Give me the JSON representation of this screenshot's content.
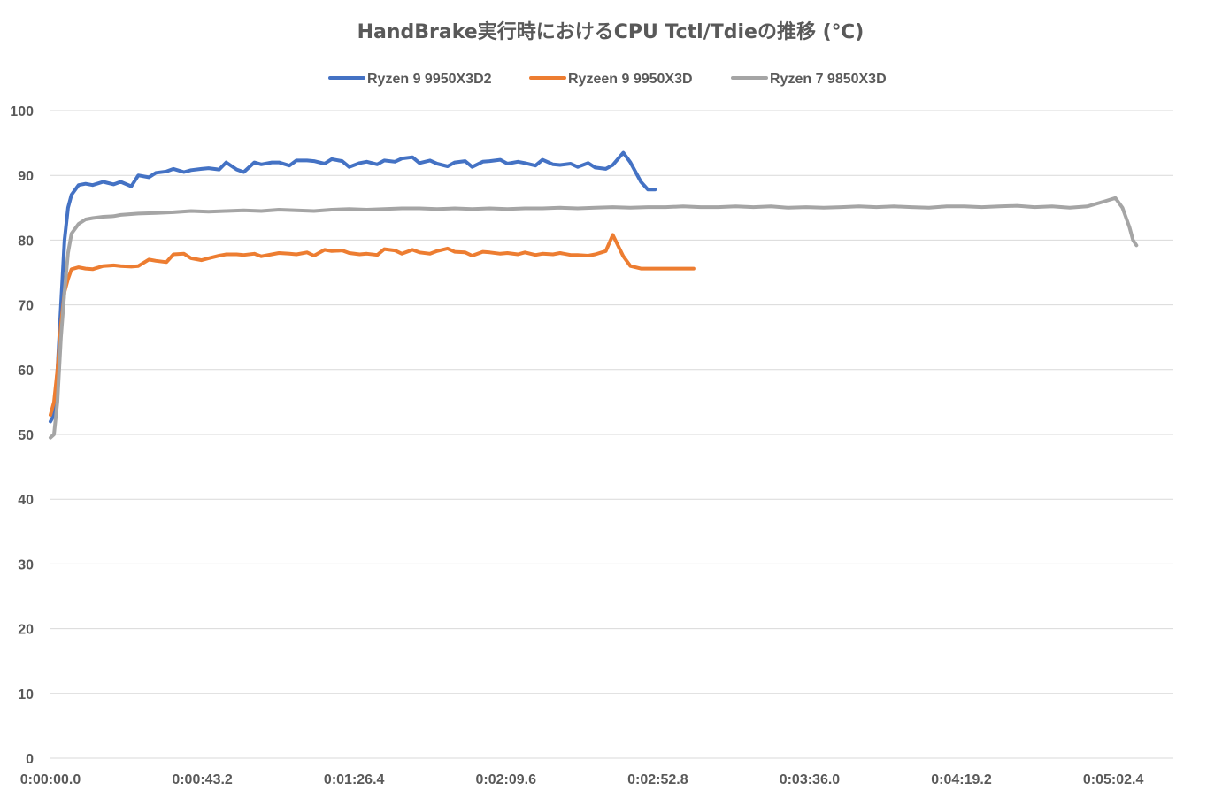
{
  "chart_data": {
    "type": "line",
    "title": "HandBrake実行時におけるCPU Tctl/Tdieの推移 (℃)",
    "xlabel": "",
    "ylabel": "",
    "ylim": [
      0,
      100
    ],
    "yticks": [
      "0",
      "10",
      "20",
      "30",
      "40",
      "50",
      "60",
      "70",
      "80",
      "90",
      "100"
    ],
    "xticks": [
      {
        "label": "0:00:00.0",
        "t": 0
      },
      {
        "label": "0:00:43.2",
        "t": 43.2
      },
      {
        "label": "0:01:26.4",
        "t": 86.4
      },
      {
        "label": "0:02:09.6",
        "t": 129.6
      },
      {
        "label": "0:02:52.8",
        "t": 172.8
      },
      {
        "label": "0:03:36.0",
        "t": 216.0
      },
      {
        "label": "0:04:19.2",
        "t": 259.2
      },
      {
        "label": "0:05:02.4",
        "t": 302.4
      }
    ],
    "xlim_seconds": [
      0,
      320
    ],
    "grid": true,
    "legend_position": "top",
    "series": [
      {
        "name": "Ryzen 9 9950X3D2",
        "color": "#4472c4",
        "t": [
          0,
          1,
          2,
          3,
          4,
          5,
          6,
          8,
          10,
          12,
          15,
          18,
          20,
          23,
          25,
          28,
          30,
          33,
          35,
          38,
          40,
          43,
          45,
          48,
          50,
          53,
          55,
          58,
          60,
          63,
          65,
          68,
          70,
          73,
          75,
          78,
          80,
          83,
          85,
          88,
          90,
          93,
          95,
          98,
          100,
          103,
          105,
          108,
          110,
          113,
          115,
          118,
          120,
          123,
          125,
          128,
          130,
          133,
          135,
          138,
          140,
          143,
          145,
          148,
          150,
          153,
          155,
          158,
          160,
          163,
          165,
          168,
          170,
          171,
          172
        ],
        "y": [
          52,
          53,
          60,
          70,
          80,
          85,
          87,
          88.5,
          88.7,
          88.5,
          89,
          88.6,
          89,
          88.3,
          90,
          89.7,
          90.4,
          90.6,
          91,
          90.5,
          90.8,
          91,
          91.1,
          90.9,
          92,
          90.9,
          90.5,
          92,
          91.7,
          92,
          92,
          91.5,
          92.3,
          92.3,
          92.2,
          91.8,
          92.5,
          92.2,
          91.3,
          91.9,
          92.1,
          91.7,
          92.3,
          92.1,
          92.6,
          92.8,
          91.9,
          92.3,
          91.8,
          91.4,
          92,
          92.2,
          91.3,
          92.1,
          92.2,
          92.4,
          91.8,
          92.1,
          91.9,
          91.5,
          92.4,
          91.7,
          91.6,
          91.8,
          91.3,
          91.9,
          91.2,
          91,
          91.6,
          93.5,
          92,
          89,
          87.8,
          87.8,
          87.8
        ]
      },
      {
        "name": "Ryzeen 9 9950X3D",
        "color": "#ed7d31",
        "t": [
          0,
          1,
          2,
          3,
          4,
          5,
          6,
          8,
          10,
          12,
          15,
          18,
          20,
          23,
          25,
          28,
          30,
          33,
          35,
          38,
          40,
          43,
          45,
          48,
          50,
          53,
          55,
          58,
          60,
          63,
          65,
          68,
          70,
          73,
          75,
          78,
          80,
          83,
          85,
          88,
          90,
          93,
          95,
          98,
          100,
          103,
          105,
          108,
          110,
          113,
          115,
          118,
          120,
          123,
          125,
          128,
          130,
          133,
          135,
          138,
          140,
          143,
          145,
          148,
          150,
          153,
          155,
          158,
          160,
          163,
          165,
          168,
          170,
          172,
          174,
          176,
          178,
          180,
          181,
          182,
          183
        ],
        "y": [
          53,
          55,
          60,
          67,
          72,
          74,
          75.5,
          75.8,
          75.6,
          75.5,
          76,
          76.1,
          76,
          75.9,
          76,
          77,
          76.8,
          76.6,
          77.8,
          77.9,
          77.2,
          76.9,
          77.2,
          77.6,
          77.8,
          77.8,
          77.7,
          77.9,
          77.5,
          77.8,
          78,
          77.9,
          77.8,
          78.1,
          77.6,
          78.5,
          78.3,
          78.4,
          78,
          77.8,
          77.9,
          77.7,
          78.6,
          78.4,
          77.9,
          78.5,
          78.1,
          77.9,
          78.3,
          78.7,
          78.2,
          78.1,
          77.6,
          78.2,
          78.1,
          77.9,
          78,
          77.8,
          78.1,
          77.7,
          77.9,
          77.8,
          78,
          77.7,
          77.7,
          77.6,
          77.8,
          78.3,
          80.8,
          77.5,
          76,
          75.6,
          75.6,
          75.6,
          75.6,
          75.6,
          75.6,
          75.6,
          75.6,
          75.6,
          75.6
        ]
      },
      {
        "name": "Ryzen 7 9850X3D",
        "color": "#a5a5a5",
        "t": [
          0,
          1,
          2,
          3,
          4,
          5,
          6,
          8,
          10,
          12,
          15,
          18,
          20,
          25,
          30,
          35,
          40,
          45,
          50,
          55,
          60,
          65,
          70,
          75,
          80,
          85,
          90,
          95,
          100,
          105,
          110,
          115,
          120,
          125,
          130,
          135,
          140,
          145,
          150,
          155,
          160,
          165,
          170,
          175,
          180,
          185,
          190,
          195,
          200,
          205,
          210,
          215,
          220,
          225,
          230,
          235,
          240,
          245,
          250,
          255,
          260,
          265,
          270,
          275,
          280,
          285,
          290,
          295,
          300,
          303,
          305,
          307,
          308,
          309
        ],
        "y": [
          49.5,
          50,
          55,
          65,
          72,
          78,
          81,
          82.5,
          83.2,
          83.4,
          83.6,
          83.7,
          83.9,
          84.1,
          84.2,
          84.3,
          84.5,
          84.4,
          84.5,
          84.6,
          84.5,
          84.7,
          84.6,
          84.5,
          84.7,
          84.8,
          84.7,
          84.8,
          84.9,
          84.9,
          84.8,
          84.9,
          84.8,
          84.9,
          84.8,
          84.9,
          84.9,
          85,
          84.9,
          85,
          85.1,
          85,
          85.1,
          85.1,
          85.2,
          85.1,
          85.1,
          85.2,
          85.1,
          85.2,
          85,
          85.1,
          85,
          85.1,
          85.2,
          85.1,
          85.2,
          85.1,
          85,
          85.2,
          85.2,
          85.1,
          85.2,
          85.3,
          85.1,
          85.2,
          85,
          85.2,
          86,
          86.5,
          85,
          82,
          80,
          79.2
        ]
      }
    ]
  }
}
